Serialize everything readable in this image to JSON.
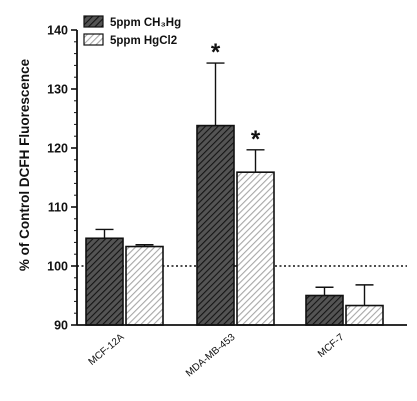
{
  "chart_data": {
    "type": "bar",
    "title": "",
    "xlabel": "",
    "ylabel": "% of Control DCFH Fluorescence",
    "categories": [
      "MCF-12A",
      "MDA-MB-453",
      "MCF-7"
    ],
    "series": [
      {
        "name": "5ppm CH₃Hg",
        "values": [
          104.7,
          123.8,
          95.0
        ],
        "errors": [
          1.5,
          10.6,
          1.4
        ],
        "pattern": "dark-hatch"
      },
      {
        "name": "5ppm HgCl2",
        "values": [
          103.3,
          115.9,
          93.3
        ],
        "errors": [
          0.3,
          3.8,
          3.5
        ],
        "pattern": "light-hatch"
      }
    ],
    "ylim": [
      90,
      140
    ],
    "yticks": [
      90,
      100,
      110,
      120,
      130,
      140
    ],
    "reference_line": 100,
    "significance_marker": "*",
    "significant": [
      [
        false,
        true,
        false
      ],
      [
        false,
        true,
        false
      ]
    ],
    "legend_position": "top-left",
    "grid": false
  }
}
